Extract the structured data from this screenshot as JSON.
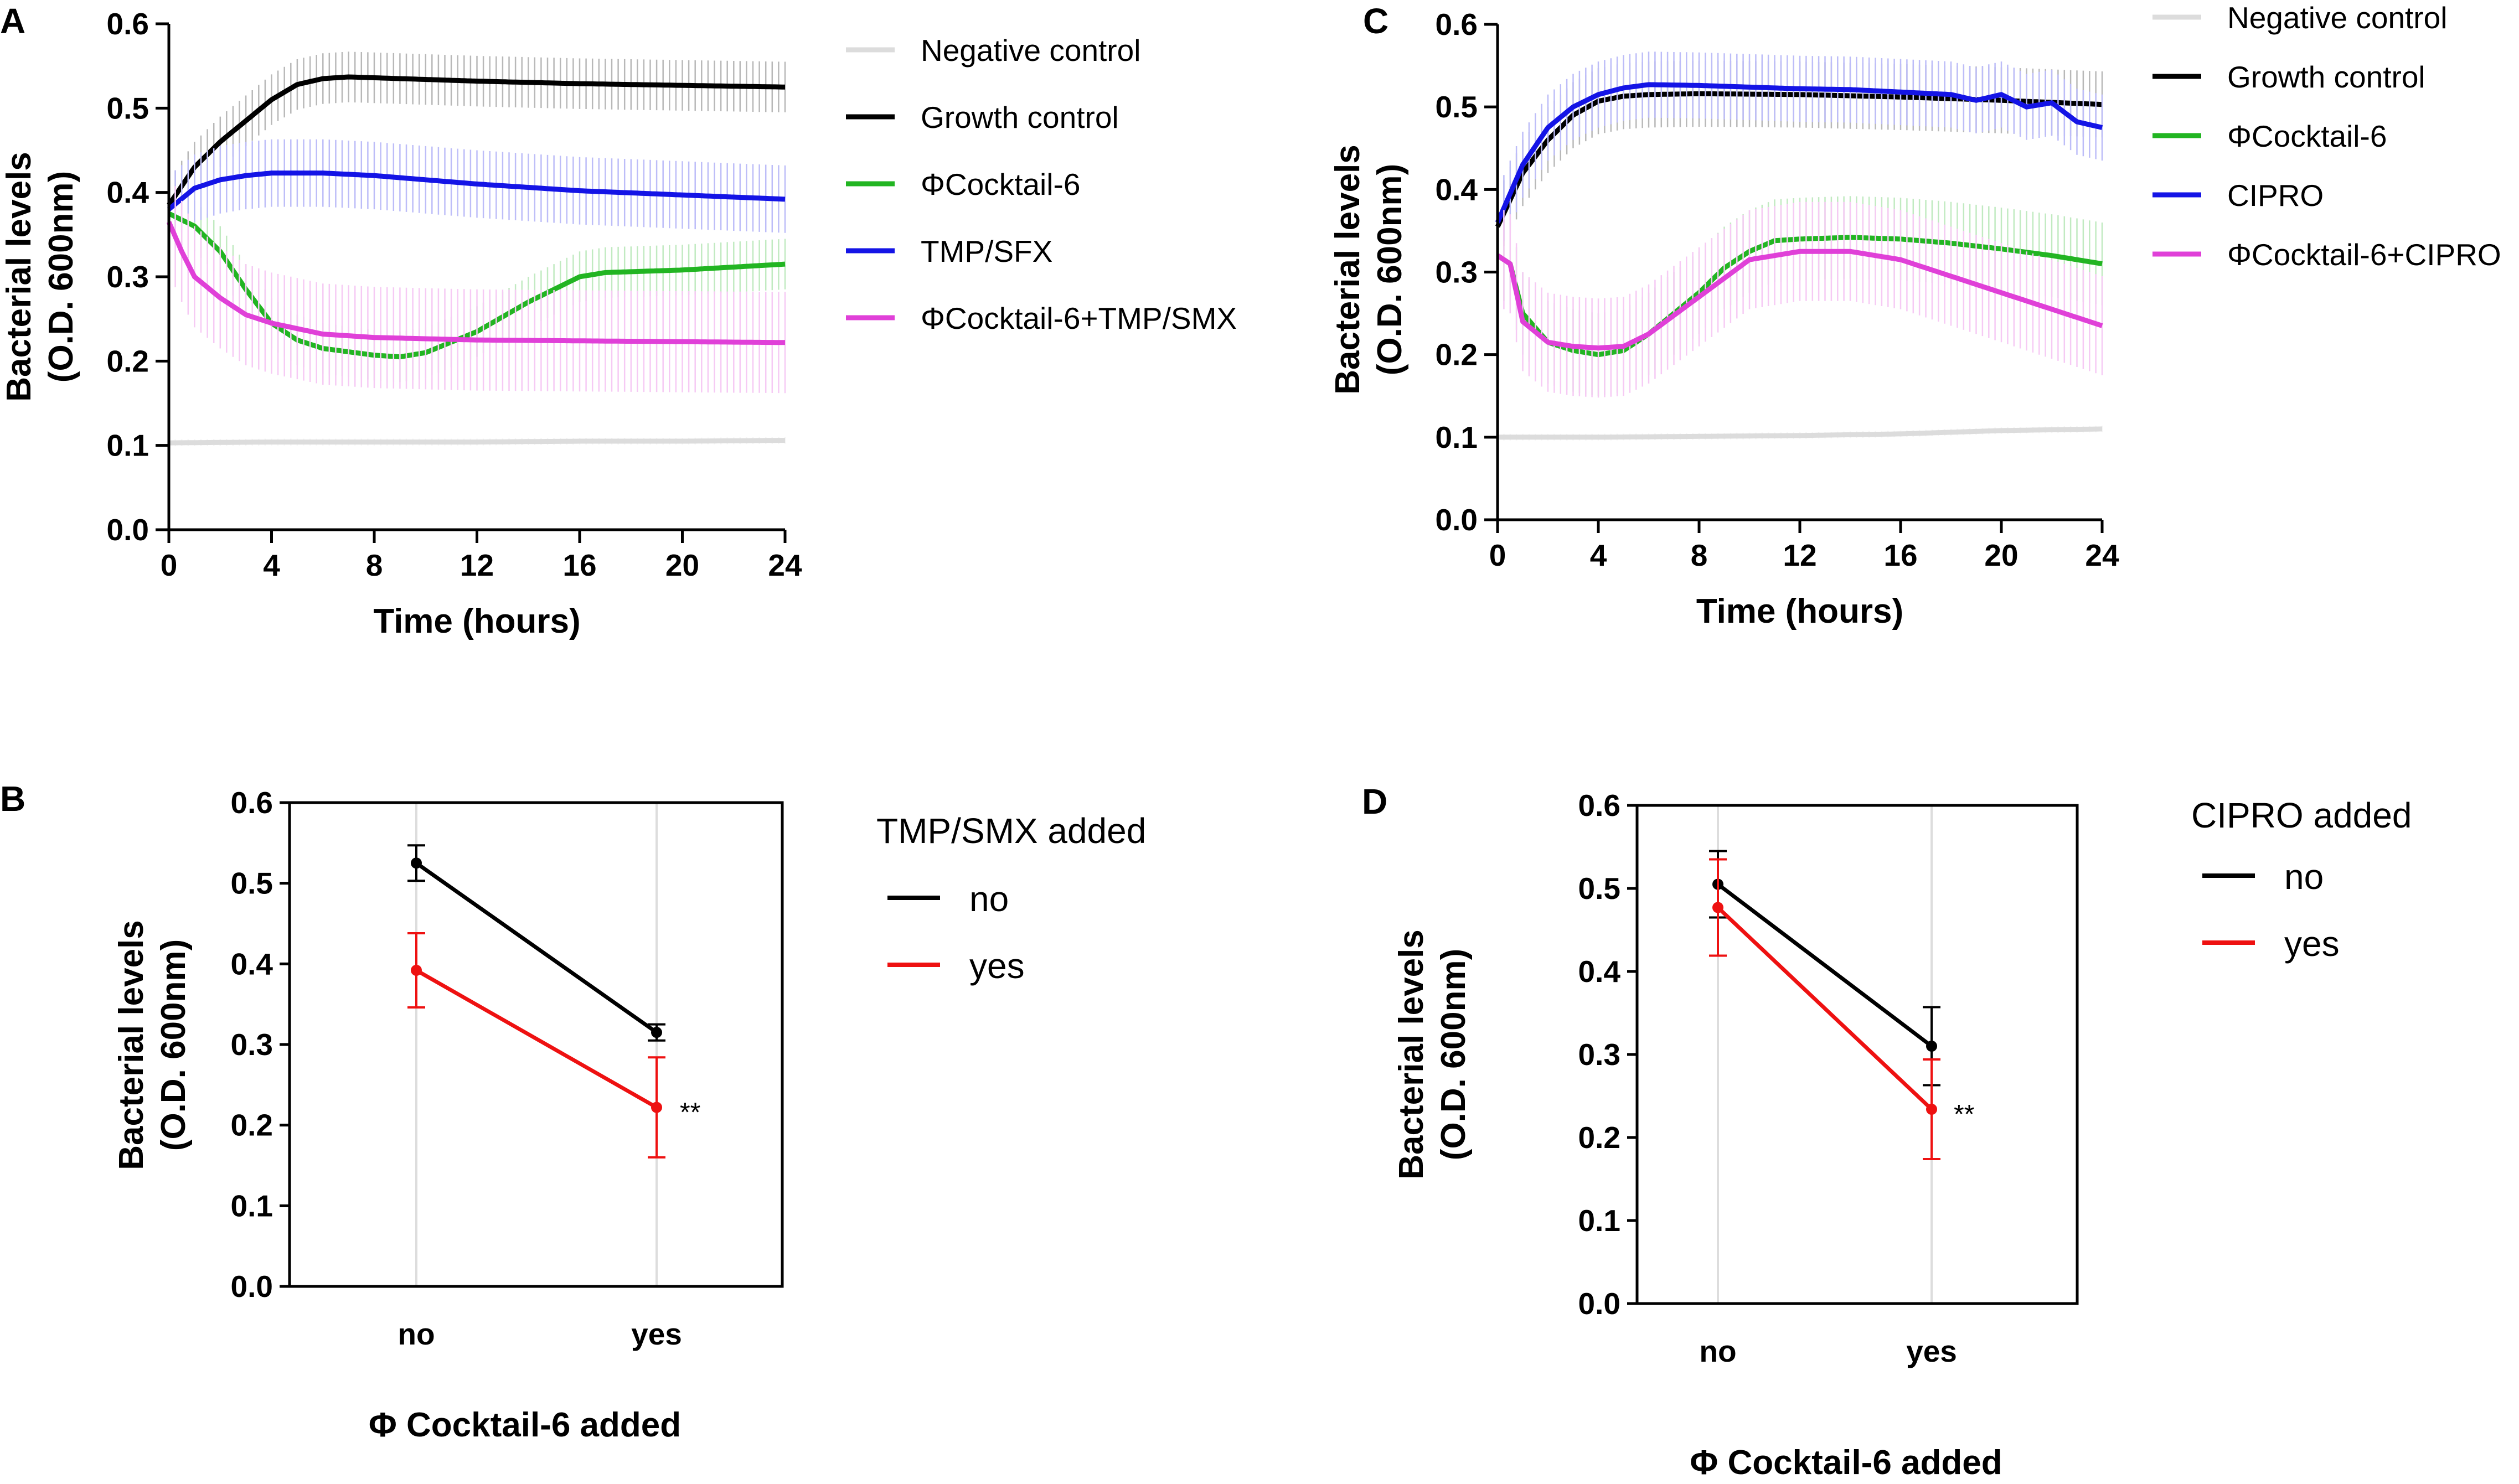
{
  "chart_data": [
    {
      "panel": "A",
      "type": "line",
      "xlabel": "Time (hours)",
      "ylabel": [
        "Bacterial levels",
        "(O.D. 600nm)"
      ],
      "xlim": [
        0,
        24
      ],
      "ylim": [
        0,
        0.6
      ],
      "xticks": [
        "0",
        "4",
        "8",
        "12",
        "16",
        "20",
        "24"
      ],
      "yticks": [
        "0.0",
        "0.1",
        "0.2",
        "0.3",
        "0.4",
        "0.5",
        "0.6"
      ],
      "legend_position": "right",
      "series": [
        {
          "name": "Negative control",
          "color": "#dcdcdc",
          "err": 0.004,
          "x": [
            0,
            4,
            8,
            12,
            16,
            20,
            24
          ],
          "y": [
            0.103,
            0.104,
            0.104,
            0.104,
            0.105,
            0.105,
            0.106
          ]
        },
        {
          "name": "Growth control",
          "color": "#000000",
          "err": 0.03,
          "x": [
            0,
            1,
            2,
            3,
            4,
            5,
            6,
            7,
            8,
            10,
            12,
            16,
            20,
            24
          ],
          "y": [
            0.385,
            0.43,
            0.46,
            0.485,
            0.51,
            0.528,
            0.535,
            0.537,
            0.536,
            0.534,
            0.532,
            0.529,
            0.527,
            0.525
          ]
        },
        {
          "name": "ΦCocktail-6",
          "color": "#22b522",
          "err": 0.03,
          "x": [
            0,
            1,
            2,
            3,
            4,
            5,
            6,
            8,
            9,
            10,
            12,
            14,
            16,
            17,
            20,
            24
          ],
          "y": [
            0.375,
            0.36,
            0.33,
            0.285,
            0.245,
            0.225,
            0.215,
            0.207,
            0.205,
            0.21,
            0.235,
            0.27,
            0.3,
            0.305,
            0.308,
            0.315
          ]
        },
        {
          "name": "TMP/SFX",
          "color": "#1414e6",
          "err": 0.04,
          "x": [
            0,
            1,
            2,
            3,
            4,
            6,
            8,
            12,
            16,
            20,
            24
          ],
          "y": [
            0.38,
            0.405,
            0.415,
            0.42,
            0.423,
            0.423,
            0.42,
            0.41,
            0.402,
            0.397,
            0.392
          ]
        },
        {
          "name": "ΦCocktail-6+TMP/SMX",
          "color": "#e040d8",
          "err": 0.06,
          "x": [
            0,
            0.5,
            1,
            2,
            3,
            4,
            6,
            8,
            12,
            16,
            20,
            24
          ],
          "y": [
            0.365,
            0.33,
            0.3,
            0.275,
            0.255,
            0.245,
            0.232,
            0.228,
            0.225,
            0.224,
            0.223,
            0.222
          ]
        }
      ]
    },
    {
      "panel": "C",
      "type": "line",
      "xlabel": "Time (hours)",
      "ylabel": [
        "Bacterial levels",
        "(O.D. 600nm)"
      ],
      "xlim": [
        0,
        24
      ],
      "ylim": [
        0,
        0.6
      ],
      "xticks": [
        "0",
        "4",
        "8",
        "12",
        "16",
        "20",
        "24"
      ],
      "yticks": [
        "0.0",
        "0.1",
        "0.2",
        "0.3",
        "0.4",
        "0.5",
        "0.6"
      ],
      "legend_position": "right",
      "series": [
        {
          "name": "Negative control",
          "color": "#dcdcdc",
          "err": 0.004,
          "x": [
            0,
            4,
            8,
            12,
            16,
            20,
            24
          ],
          "y": [
            0.1,
            0.1,
            0.101,
            0.102,
            0.104,
            0.108,
            0.11
          ]
        },
        {
          "name": "Growth control",
          "color": "#000000",
          "err": 0.04,
          "x": [
            0,
            1,
            2,
            3,
            4,
            5,
            6,
            8,
            12,
            16,
            20,
            24
          ],
          "y": [
            0.355,
            0.42,
            0.46,
            0.49,
            0.507,
            0.513,
            0.515,
            0.516,
            0.515,
            0.512,
            0.508,
            0.503
          ]
        },
        {
          "name": "ΦCocktail-6",
          "color": "#22b522",
          "err": 0.05,
          "x": [
            0,
            0.5,
            1,
            2,
            3,
            4,
            5,
            6,
            8,
            9,
            10,
            11,
            12,
            14,
            16,
            18,
            20,
            22,
            24
          ],
          "y": [
            0.32,
            0.31,
            0.25,
            0.215,
            0.205,
            0.2,
            0.205,
            0.225,
            0.275,
            0.305,
            0.325,
            0.338,
            0.34,
            0.342,
            0.34,
            0.335,
            0.328,
            0.32,
            0.31
          ]
        },
        {
          "name": "CIPRO",
          "color": "#1414e6",
          "err": 0.04,
          "x": [
            0,
            1,
            2,
            3,
            4,
            5,
            6,
            8,
            10,
            12,
            14,
            16,
            18,
            19,
            20,
            21,
            22,
            23,
            24
          ],
          "y": [
            0.36,
            0.43,
            0.475,
            0.5,
            0.515,
            0.523,
            0.527,
            0.526,
            0.524,
            0.522,
            0.521,
            0.518,
            0.515,
            0.508,
            0.515,
            0.5,
            0.505,
            0.482,
            0.475
          ]
        },
        {
          "name": "ΦCocktail-6+CIPRO",
          "color": "#e040d8",
          "err": 0.06,
          "x": [
            0,
            0.5,
            1,
            2,
            3,
            4,
            5,
            6,
            8,
            10,
            12,
            14,
            16,
            18,
            20,
            22,
            24
          ],
          "y": [
            0.32,
            0.31,
            0.24,
            0.215,
            0.21,
            0.208,
            0.21,
            0.225,
            0.27,
            0.315,
            0.325,
            0.325,
            0.315,
            0.295,
            0.275,
            0.255,
            0.235
          ]
        }
      ]
    },
    {
      "panel": "B",
      "type": "line",
      "xlabel": "Φ Cocktail-6 added",
      "ylabel": [
        "Bacterial levels",
        "(O.D. 600nm)"
      ],
      "categories": [
        "no",
        "yes"
      ],
      "ylim": [
        0,
        0.6
      ],
      "yticks": [
        "0.0",
        "0.1",
        "0.2",
        "0.3",
        "0.4",
        "0.5",
        "0.6"
      ],
      "legend_title": "TMP/SMX added",
      "legend_position": "right",
      "significance": "**",
      "series": [
        {
          "name": "no",
          "color": "#000000",
          "values": [
            0.525,
            0.315
          ],
          "err": [
            0.022,
            0.01
          ]
        },
        {
          "name": "yes",
          "color": "#ee1111",
          "values": [
            0.392,
            0.222
          ],
          "err": [
            0.046,
            0.062
          ]
        }
      ]
    },
    {
      "panel": "D",
      "type": "line",
      "xlabel": "Φ Cocktail-6 added",
      "ylabel": [
        "Bacterial levels",
        "(O.D. 600nm)"
      ],
      "categories": [
        "no",
        "yes"
      ],
      "ylim": [
        0,
        0.6
      ],
      "yticks": [
        "0.0",
        "0.1",
        "0.2",
        "0.3",
        "0.4",
        "0.5",
        "0.6"
      ],
      "legend_title": "CIPRO added",
      "legend_position": "right",
      "significance": "**",
      "series": [
        {
          "name": "no",
          "color": "#000000",
          "values": [
            0.505,
            0.31
          ],
          "err": [
            0.04,
            0.047
          ]
        },
        {
          "name": "yes",
          "color": "#ee1111",
          "values": [
            0.477,
            0.234
          ],
          "err": [
            0.058,
            0.06
          ]
        }
      ]
    }
  ]
}
